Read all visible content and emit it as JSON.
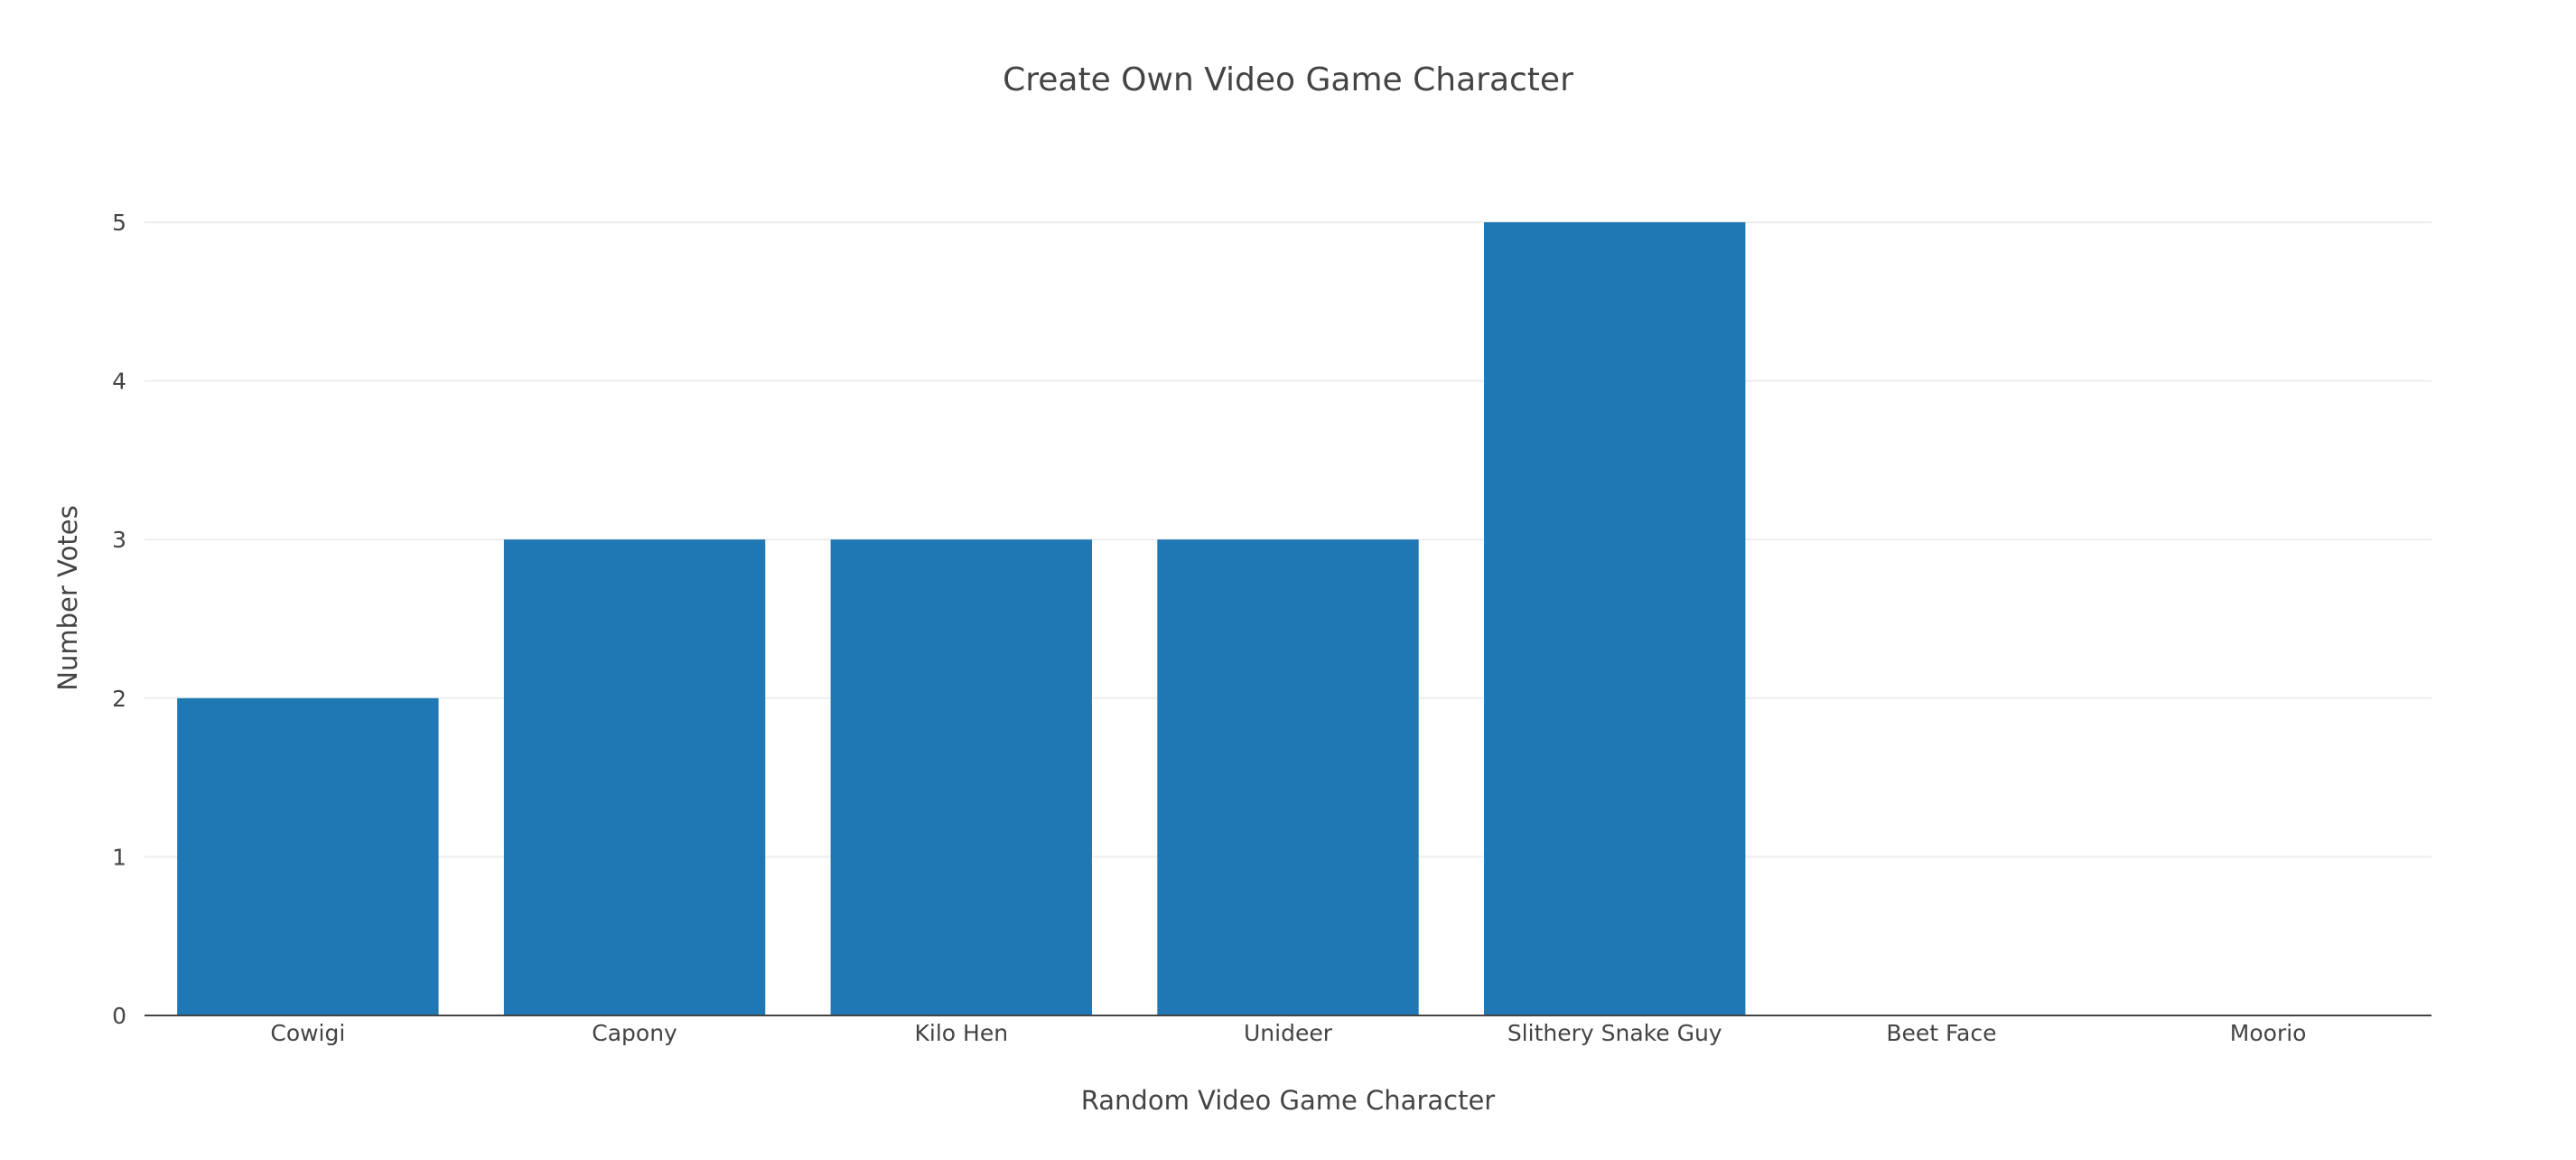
{
  "chart_data": {
    "type": "bar",
    "title": "Create Own Video Game Character",
    "xlabel": "Random Video Game Character",
    "ylabel": "Number Votes",
    "categories": [
      "Cowigi",
      "Capony",
      "Kilo Hen",
      "Unideer",
      "Slithery Snake Guy",
      "Beet Face",
      "Moorio"
    ],
    "values": [
      2,
      3,
      3,
      3,
      5,
      0,
      0
    ],
    "ylim": [
      0,
      5
    ],
    "yticks": [
      0,
      1,
      2,
      3,
      4,
      5
    ],
    "grid": true,
    "bar_color": "#1f77b4",
    "grid_color": "#eeeeee",
    "axis_color": "#444444"
  }
}
